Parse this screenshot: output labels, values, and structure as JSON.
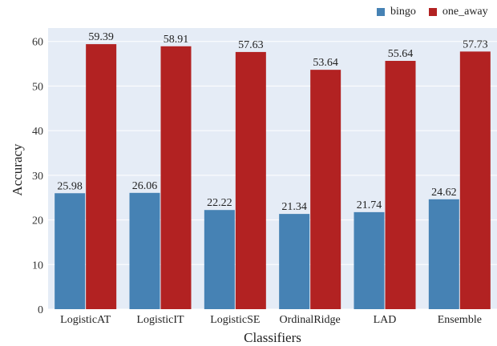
{
  "chart_data": {
    "type": "bar",
    "categories": [
      "LogisticAT",
      "LogisticIT",
      "LogisticSE",
      "OrdinalRidge",
      "LAD",
      "Ensemble"
    ],
    "series": [
      {
        "name": "bingo",
        "color": "#4682b4",
        "values": [
          25.98,
          26.06,
          22.22,
          21.34,
          21.74,
          24.62
        ]
      },
      {
        "name": "one_away",
        "color": "#b22222",
        "values": [
          59.39,
          58.91,
          57.63,
          53.64,
          55.64,
          57.73
        ]
      }
    ],
    "data_labels": [
      [
        "25.98",
        "26.06",
        "22.22",
        "21.34",
        "21.74",
        "24.62"
      ],
      [
        "59.39",
        "58.91",
        "57.63",
        "53.64",
        "55.64",
        "57.73"
      ]
    ],
    "xlabel": "Classifiers",
    "ylabel": "Accuracy",
    "ylim": [
      0,
      63
    ],
    "yticks": [
      0,
      10,
      20,
      30,
      40,
      50,
      60
    ],
    "grid": true,
    "legend_position": "top-right",
    "plot_background": "#e5ecf6"
  }
}
